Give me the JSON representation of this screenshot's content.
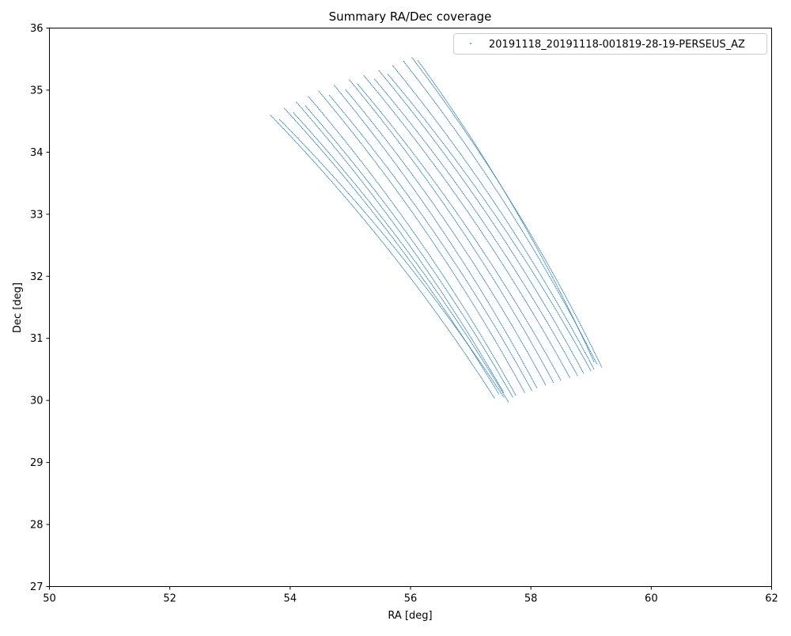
{
  "chart_data": {
    "type": "scatter",
    "title": "Summary RA/Dec coverage",
    "xlabel": "RA [deg]",
    "ylabel": "Dec [deg]",
    "xlim": [
      50,
      62
    ],
    "ylim": [
      27,
      36
    ],
    "xticks": [
      "50",
      "52",
      "54",
      "56",
      "58",
      "60",
      "62"
    ],
    "yticks": [
      "27",
      "28",
      "29",
      "30",
      "31",
      "32",
      "33",
      "34",
      "35",
      "36"
    ],
    "grid": false,
    "legend": {
      "placement": "top-right"
    },
    "colors": {
      "series": "#1f77b4",
      "axes": "#000000",
      "background": "#ffffff"
    },
    "series": [
      {
        "name": "20191118_20191118-001819-28-19-PERSEUS_AZ",
        "marker": "point",
        "scans": [
          {
            "start": [
              53.67,
              34.6
            ],
            "end": [
              57.4,
              30.03
            ]
          },
          {
            "start": [
              53.82,
              34.53
            ],
            "end": [
              57.55,
              30.05
            ]
          },
          {
            "start": [
              53.9,
              34.71
            ],
            "end": [
              57.47,
              30.1
            ]
          },
          {
            "start": [
              54.05,
              34.64
            ],
            "end": [
              57.63,
              29.97
            ]
          },
          {
            "start": [
              54.1,
              34.81
            ],
            "end": [
              57.55,
              30.12
            ]
          },
          {
            "start": [
              54.25,
              34.75
            ],
            "end": [
              57.7,
              30.05
            ]
          },
          {
            "start": [
              54.3,
              34.9
            ],
            "end": [
              57.75,
              30.08
            ]
          },
          {
            "start": [
              54.47,
              34.99
            ],
            "end": [
              57.9,
              30.12
            ]
          },
          {
            "start": [
              54.65,
              34.92
            ],
            "end": [
              58.02,
              30.15
            ]
          },
          {
            "start": [
              54.73,
              35.08
            ],
            "end": [
              58.1,
              30.2
            ]
          },
          {
            "start": [
              54.92,
              35.01
            ],
            "end": [
              58.25,
              30.24
            ]
          },
          {
            "start": [
              54.98,
              35.17
            ],
            "end": [
              58.38,
              30.28
            ]
          },
          {
            "start": [
              55.12,
              35.1
            ],
            "end": [
              58.5,
              30.32
            ]
          },
          {
            "start": [
              55.22,
              35.24
            ],
            "end": [
              58.65,
              30.36
            ]
          },
          {
            "start": [
              55.4,
              35.18
            ],
            "end": [
              58.78,
              30.39
            ]
          },
          {
            "start": [
              55.47,
              35.32
            ],
            "end": [
              58.88,
              30.43
            ]
          },
          {
            "start": [
              55.62,
              35.26
            ],
            "end": [
              59.0,
              30.47
            ]
          },
          {
            "start": [
              55.7,
              35.4
            ],
            "end": [
              59.05,
              30.5
            ]
          },
          {
            "start": [
              55.88,
              35.47
            ],
            "end": [
              59.1,
              30.58
            ]
          },
          {
            "start": [
              56.02,
              35.53
            ],
            "end": [
              59.18,
              30.53
            ]
          },
          {
            "start": [
              56.12,
              35.48
            ],
            "end": [
              59.05,
              30.62
            ]
          }
        ]
      }
    ]
  }
}
